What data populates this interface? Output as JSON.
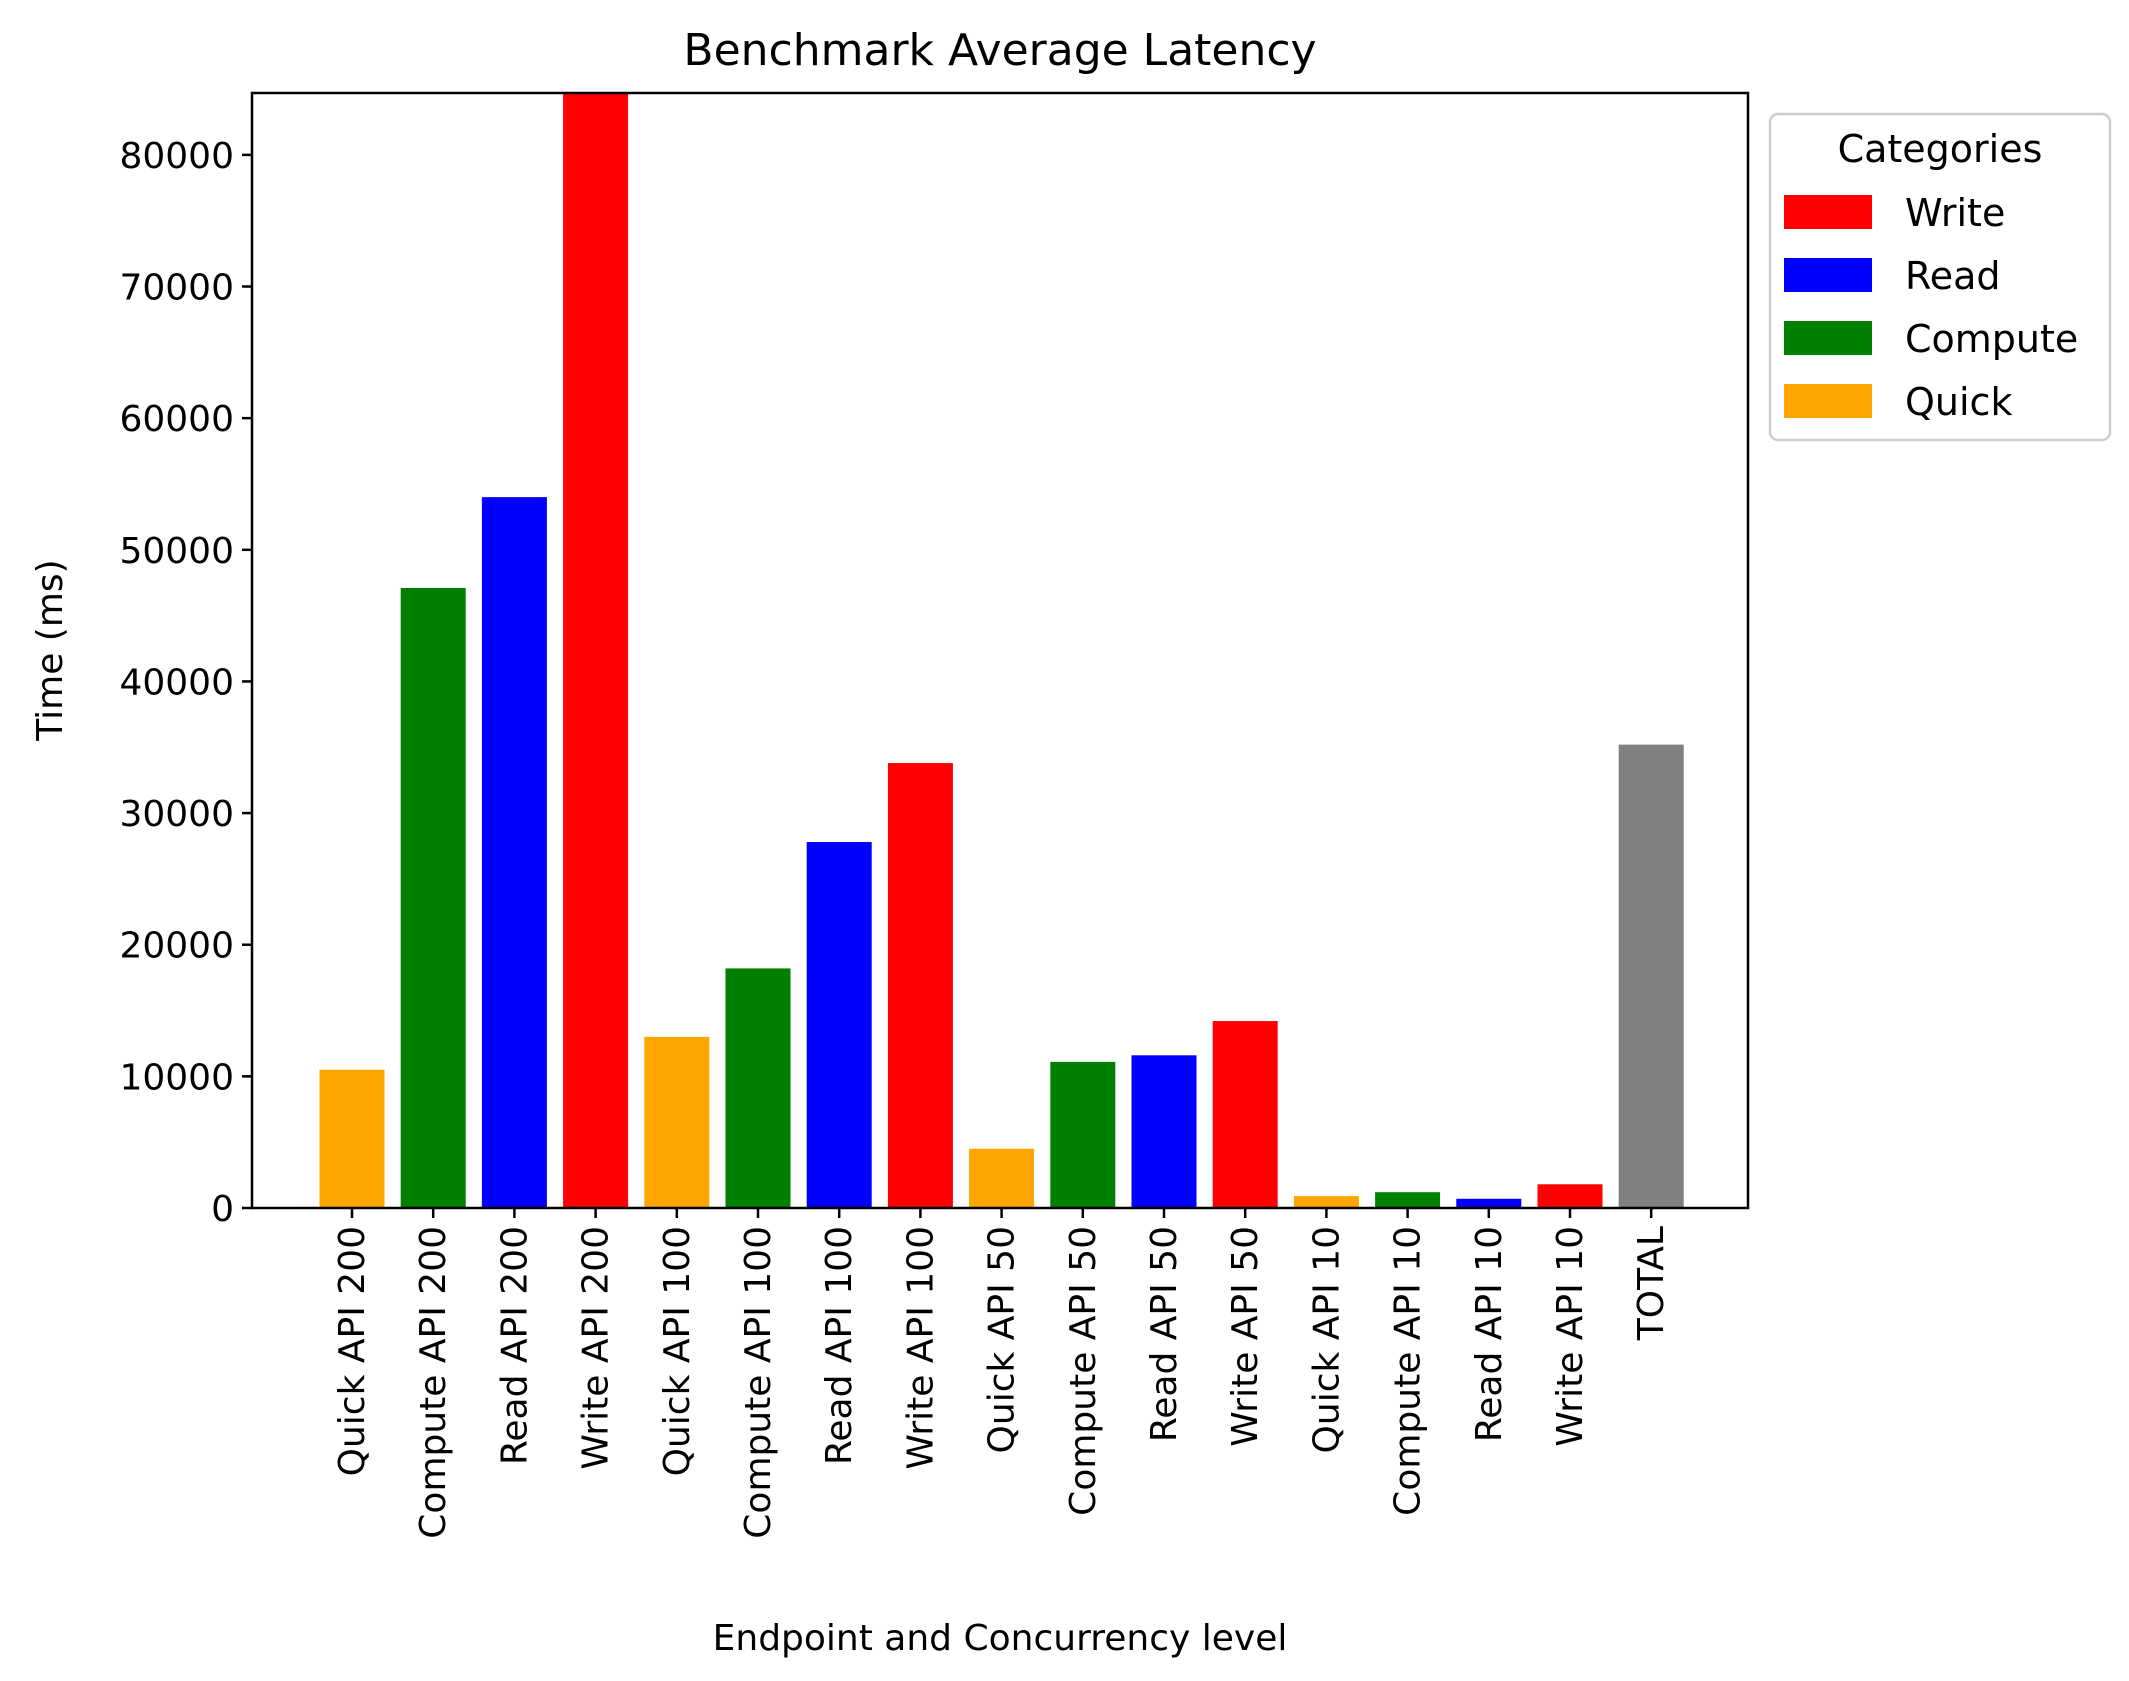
{
  "chart_data": {
    "type": "bar",
    "title": "Benchmark Average Latency",
    "xlabel": "Endpoint and Concurrency level",
    "ylabel": "Time (ms)",
    "ylim": [
      0,
      84700
    ],
    "yticks": [
      0,
      10000,
      20000,
      30000,
      40000,
      50000,
      60000,
      70000,
      80000
    ],
    "grid": false,
    "categories": [
      "Quick API 200",
      "Compute API 200",
      "Read API 200",
      "Write API 200",
      "Quick API 100",
      "Compute API 100",
      "Read API 100",
      "Write API 100",
      "Quick API 50",
      "Compute API 50",
      "Read API 50",
      "Write API 50",
      "Quick API 10",
      "Compute API 10",
      "Read API 10",
      "Write API 10",
      "TOTAL"
    ],
    "values": [
      10500,
      47100,
      54000,
      84700,
      13000,
      18200,
      27800,
      33800,
      4500,
      11100,
      11600,
      14200,
      900,
      1200,
      700,
      1800,
      35200
    ],
    "bar_categories": [
      "Quick",
      "Compute",
      "Read",
      "Write",
      "Quick",
      "Compute",
      "Read",
      "Write",
      "Quick",
      "Compute",
      "Read",
      "Write",
      "Quick",
      "Compute",
      "Read",
      "Write",
      "total"
    ],
    "colors": {
      "Write": "#ff0000",
      "Read": "#0000ff",
      "Compute": "#008000",
      "Quick": "#ffa500",
      "total": "#808080"
    },
    "legend": {
      "title": "Categories",
      "placement": "outside-top-right",
      "entries": [
        "Write",
        "Read",
        "Compute",
        "Quick"
      ]
    }
  }
}
